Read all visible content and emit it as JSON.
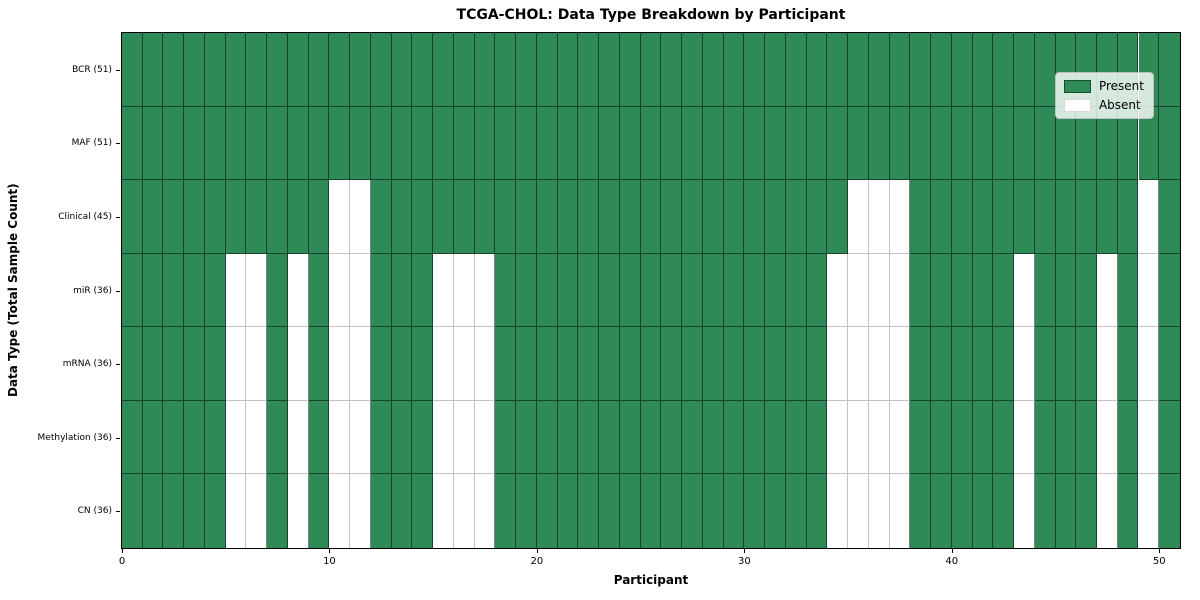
{
  "title": "TCGA-CHOL: Data Type Breakdown by Participant",
  "xlabel": "Participant",
  "ylabel": "Data Type (Total Sample Count)",
  "legend": {
    "present": "Present",
    "absent": "Absent"
  },
  "colors": {
    "present_fill": "#2e8b57",
    "absent_fill": "#ffffff",
    "present_border": "rgba(0,0,0,0.5)",
    "absent_border": "#c3c3c3",
    "spine": "#000000",
    "legend_border": "#bfbfbf"
  },
  "chart_data": {
    "type": "heatmap",
    "title": "TCGA-CHOL: Data Type Breakdown by Participant",
    "xlabel": "Participant",
    "ylabel": "Data Type (Total Sample Count)",
    "x_range": [
      0,
      51
    ],
    "n_participants": 51,
    "x_ticks": [
      0,
      10,
      20,
      30,
      40,
      50
    ],
    "legend_entries": [
      "Present",
      "Absent"
    ],
    "legend_position": "upper right",
    "rows": [
      {
        "label": "BCR (51)",
        "present_count": 51,
        "absent_participants": []
      },
      {
        "label": "MAF (51)",
        "present_count": 51,
        "absent_participants": []
      },
      {
        "label": "Clinical (45)",
        "present_count": 45,
        "absent_participants": [
          10,
          11,
          35,
          36,
          37,
          49
        ]
      },
      {
        "label": "miR (36)",
        "present_count": 36,
        "absent_participants": [
          5,
          6,
          8,
          10,
          11,
          15,
          16,
          17,
          34,
          35,
          36,
          37,
          43,
          47,
          49
        ]
      },
      {
        "label": "mRNA (36)",
        "present_count": 36,
        "absent_participants": [
          5,
          6,
          8,
          10,
          11,
          15,
          16,
          17,
          34,
          35,
          36,
          37,
          43,
          47,
          49
        ]
      },
      {
        "label": "Methylation (36)",
        "present_count": 36,
        "absent_participants": [
          5,
          6,
          8,
          10,
          11,
          15,
          16,
          17,
          34,
          35,
          36,
          37,
          43,
          47,
          49
        ]
      },
      {
        "label": "CN (36)",
        "present_count": 36,
        "absent_participants": [
          5,
          6,
          8,
          10,
          11,
          15,
          16,
          17,
          34,
          35,
          36,
          37,
          43,
          47,
          49
        ]
      }
    ]
  }
}
